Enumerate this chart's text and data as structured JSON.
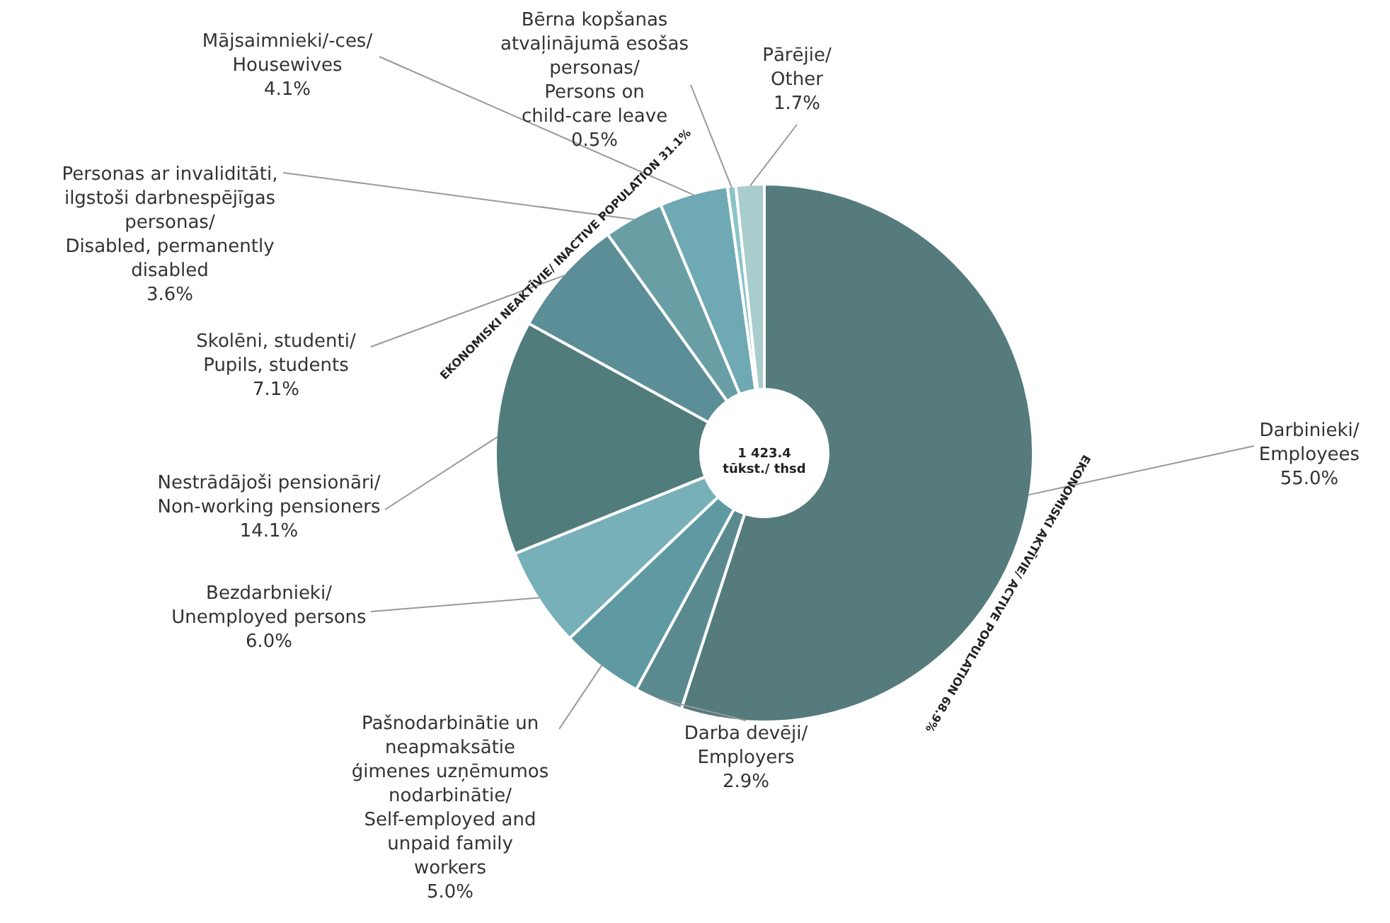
{
  "chart_data": {
    "type": "donut",
    "categories": [
      "Darbinieki/\nEmployees",
      "Darba devēji/\nEmployers",
      "Pašnodarbinātie un\nneapmaksātie\nģimenes uzņēmumos\nnodarbinātie/\nSelf-employed and\nunpaid family\nworkers",
      "Bezdarbnieki/\nUnemployed persons",
      "Nestrādājoši pensionāri/\nNon-working pensioners",
      "Skolēni, studenti/\nPupils, students",
      "Personas ar invaliditāti,\nilgstoši darbnespējīgas\npersonas/\nDisabled, permanently\ndisabled",
      "Mājsaimnieki/-ces/\nHousewives",
      "Bērna kopšanas\natvaļinājumā esošas\npersonas/\nPersons on\nchild-care leave",
      "Pārējie/\nOther"
    ],
    "values": [
      55.0,
      2.9,
      5.0,
      6.0,
      14.1,
      7.1,
      3.6,
      4.1,
      0.5,
      1.7
    ],
    "value_labels": [
      "55.0%",
      "2.9%",
      "5.0%",
      "6.0%",
      "14.1%",
      "7.1%",
      "3.6%",
      "4.1%",
      "0.5%",
      "1.7%"
    ],
    "colors": [
      "#557b7c",
      "#5a8a8f",
      "#5f9aa3",
      "#78b0ba",
      "#517c7c",
      "#5b8e96",
      "#6a9ea5",
      "#6fa9b3",
      "#8cc3cb",
      "#a9cccc"
    ],
    "annotations": [
      "EKONOMISKI AKTĪVIE/ ACTIVE POPULATION 68.9%",
      "EKONOMISKI NEAKTĪVIE/ INACTIVE POPULATION 31.1%",
      "1 423.4\ntūkst./ thsd"
    ]
  }
}
